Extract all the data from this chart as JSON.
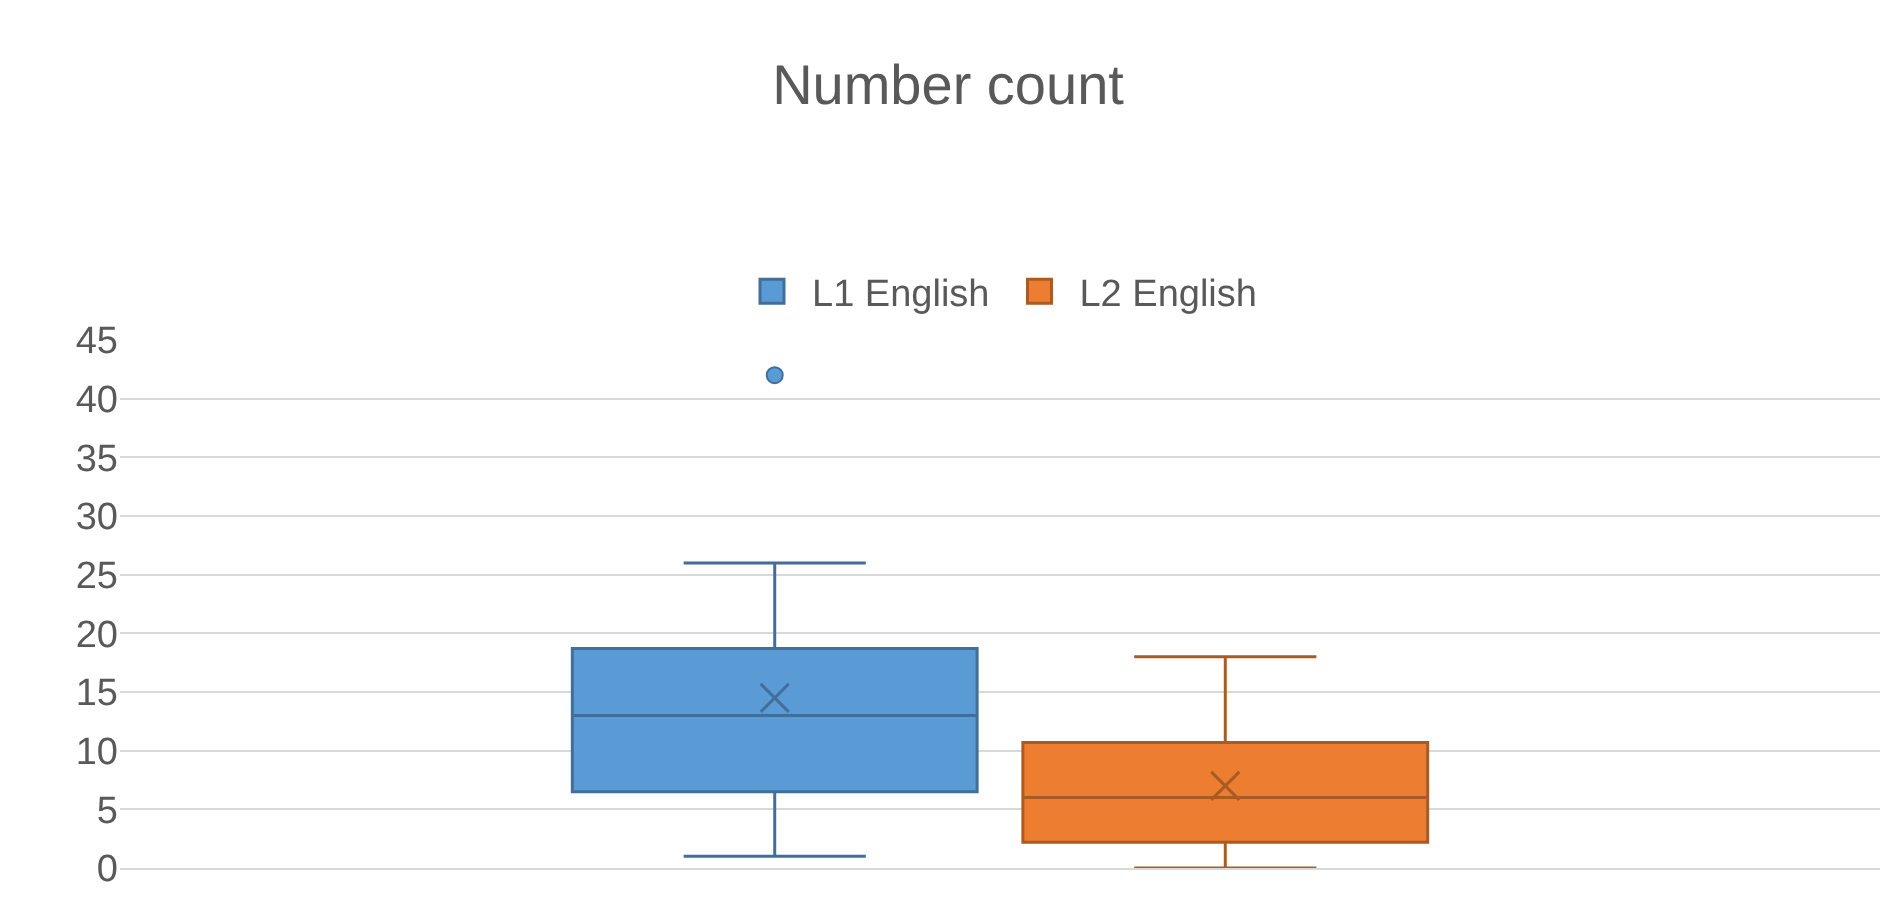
{
  "chart_data": {
    "type": "box",
    "title": "Number count",
    "categories": [
      null
    ],
    "series": [
      {
        "name": "L1 English",
        "color": "#5b9bd5",
        "boxes": [
          {
            "low": 1,
            "q1": 6.5,
            "median": 13,
            "q3": 18.7,
            "high": 26,
            "mean": 14.5,
            "outliers": [
              42
            ]
          }
        ]
      },
      {
        "name": "L2 English",
        "color": "#ed7d31",
        "boxes": [
          {
            "low": 0,
            "q1": 2.2,
            "median": 6,
            "q3": 10.7,
            "high": 18,
            "mean": 7
          }
        ]
      }
    ],
    "ylim": [
      0,
      45
    ],
    "yticks": [
      0,
      5,
      10,
      15,
      20,
      25,
      30,
      35,
      40,
      45
    ],
    "grid": "y",
    "legend": "top",
    "tick_labels": "y"
  }
}
